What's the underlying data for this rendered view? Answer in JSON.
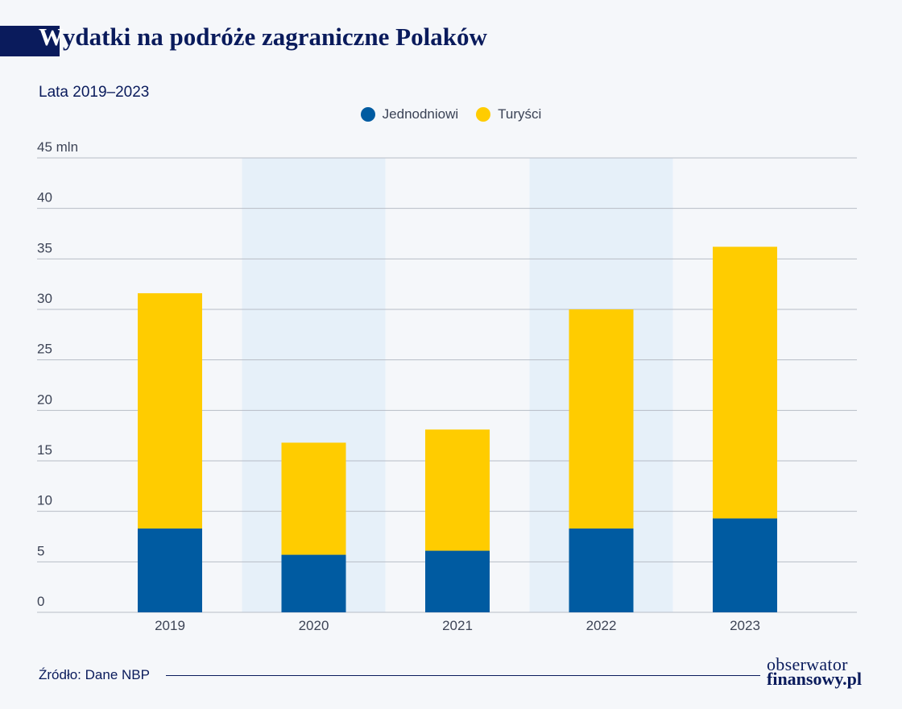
{
  "header": {
    "title_first": "W",
    "title_rest": "ydatki na podróże zagraniczne Polaków",
    "subtitle": "Lata 2019–2023"
  },
  "legend": {
    "items": [
      {
        "label": "Jednodniowi",
        "color": "#005ba1"
      },
      {
        "label": "Turyści",
        "color": "#ffcc00"
      }
    ]
  },
  "chart_data": {
    "type": "bar",
    "stacked": true,
    "categories": [
      "2019",
      "2020",
      "2021",
      "2022",
      "2023"
    ],
    "series": [
      {
        "name": "Jednodniowi",
        "color": "#005ba1",
        "values": [
          8.3,
          5.7,
          6.1,
          8.3,
          9.3
        ]
      },
      {
        "name": "Turyści",
        "color": "#ffcc00",
        "values": [
          23.3,
          11.1,
          12.0,
          21.7,
          26.9
        ]
      }
    ],
    "y_ticks": [
      0,
      5,
      10,
      15,
      20,
      25,
      30,
      35,
      40,
      45
    ],
    "y_top_tick_label": "45 mln",
    "ylim": [
      0,
      45
    ],
    "grid": true,
    "shaded_categories": [
      "2020",
      "2022"
    ],
    "shade_color": "#e6f0f9"
  },
  "footer": {
    "source": "Źródło: Dane NBP",
    "logo_line1": "obserwator",
    "logo_line2": "finansowy.pl"
  }
}
